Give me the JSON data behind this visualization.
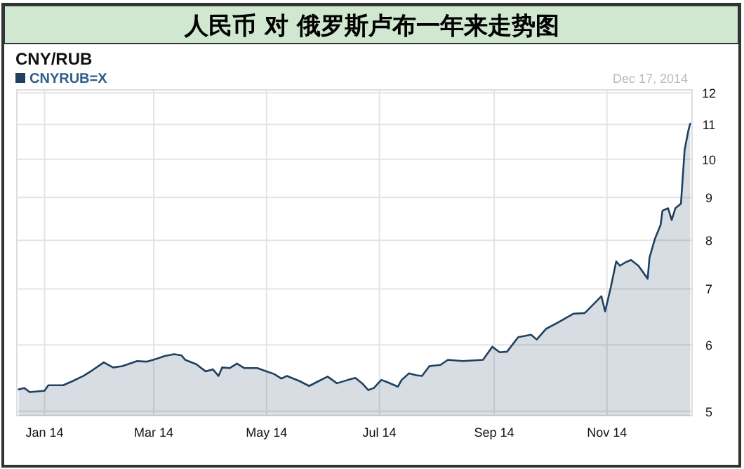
{
  "chart_data": {
    "type": "area",
    "title": "人民币 对 俄罗斯卢布一年来走势图",
    "subtitle": "CNY/RUB",
    "annotations": [
      "Dec 17, 2014"
    ],
    "log": true,
    "grid": true,
    "legend": "top left",
    "xlim": [
      "2013-12-17",
      "2014-12-17"
    ],
    "ylim": [
      4.94,
      12.1
    ],
    "xticks": [
      {
        "value": "2014-01-01",
        "label": "Jan 14"
      },
      {
        "value": "2014-03-01",
        "label": "Mar 14"
      },
      {
        "value": "2014-05-01",
        "label": "May 14"
      },
      {
        "value": "2014-07-01",
        "label": "Jul 14"
      },
      {
        "value": "2014-09-01",
        "label": "Sep 14"
      },
      {
        "value": "2014-11-01",
        "label": "Nov 14"
      }
    ],
    "yticks": [
      5,
      6,
      7,
      8,
      9,
      10,
      11,
      12
    ],
    "series": [
      {
        "name": "CNYRUB=X",
        "color": "#1f4060",
        "x": [
          "2013-12-18",
          "2013-12-21",
          "2013-12-24",
          "2014-01-01",
          "2014-01-03",
          "2014-01-11",
          "2014-01-16",
          "2014-01-22",
          "2014-01-27",
          "2014-02-02",
          "2014-02-07",
          "2014-02-12",
          "2014-02-20",
          "2014-02-25",
          "2014-03-02",
          "2014-03-07",
          "2014-03-12",
          "2014-03-16",
          "2014-03-18",
          "2014-03-24",
          "2014-03-29",
          "2014-04-02",
          "2014-04-05",
          "2014-04-07",
          "2014-04-11",
          "2014-04-15",
          "2014-04-19",
          "2014-04-26",
          "2014-05-01",
          "2014-05-05",
          "2014-05-09",
          "2014-05-12",
          "2014-05-19",
          "2014-05-24",
          "2014-05-29",
          "2014-06-03",
          "2014-06-08",
          "2014-06-14",
          "2014-06-18",
          "2014-06-22",
          "2014-06-25",
          "2014-06-28",
          "2014-07-02",
          "2014-07-05",
          "2014-07-11",
          "2014-07-13",
          "2014-07-17",
          "2014-07-21",
          "2014-07-24",
          "2014-07-28",
          "2014-08-03",
          "2014-08-07",
          "2014-08-15",
          "2014-08-26",
          "2014-08-31",
          "2014-09-04",
          "2014-09-08",
          "2014-09-14",
          "2014-09-21",
          "2014-09-24",
          "2014-09-29",
          "2014-10-06",
          "2014-10-14",
          "2014-10-20",
          "2014-10-29",
          "2014-10-31",
          "2014-11-03",
          "2014-11-06",
          "2014-11-08",
          "2014-11-11",
          "2014-11-14",
          "2014-11-18",
          "2014-11-23",
          "2014-11-24",
          "2014-11-27",
          "2014-11-30",
          "2014-12-01",
          "2014-12-04",
          "2014-12-06",
          "2014-12-08",
          "2014-12-11",
          "2014-12-13",
          "2014-12-15",
          "2014-12-16"
        ],
        "values": [
          5.31,
          5.33,
          5.27,
          5.29,
          5.37,
          5.37,
          5.43,
          5.51,
          5.6,
          5.72,
          5.64,
          5.66,
          5.74,
          5.73,
          5.77,
          5.82,
          5.85,
          5.83,
          5.76,
          5.69,
          5.58,
          5.61,
          5.51,
          5.64,
          5.63,
          5.7,
          5.63,
          5.63,
          5.58,
          5.54,
          5.47,
          5.51,
          5.43,
          5.36,
          5.43,
          5.5,
          5.4,
          5.45,
          5.48,
          5.39,
          5.3,
          5.33,
          5.45,
          5.42,
          5.35,
          5.45,
          5.55,
          5.52,
          5.51,
          5.66,
          5.68,
          5.76,
          5.74,
          5.76,
          5.97,
          5.88,
          5.89,
          6.13,
          6.17,
          6.09,
          6.27,
          6.39,
          6.54,
          6.55,
          6.86,
          6.58,
          7.02,
          7.55,
          7.46,
          7.53,
          7.58,
          7.46,
          7.2,
          7.63,
          8.04,
          8.35,
          8.68,
          8.74,
          8.46,
          8.74,
          8.85,
          10.27,
          10.82,
          11.03
        ]
      }
    ]
  }
}
